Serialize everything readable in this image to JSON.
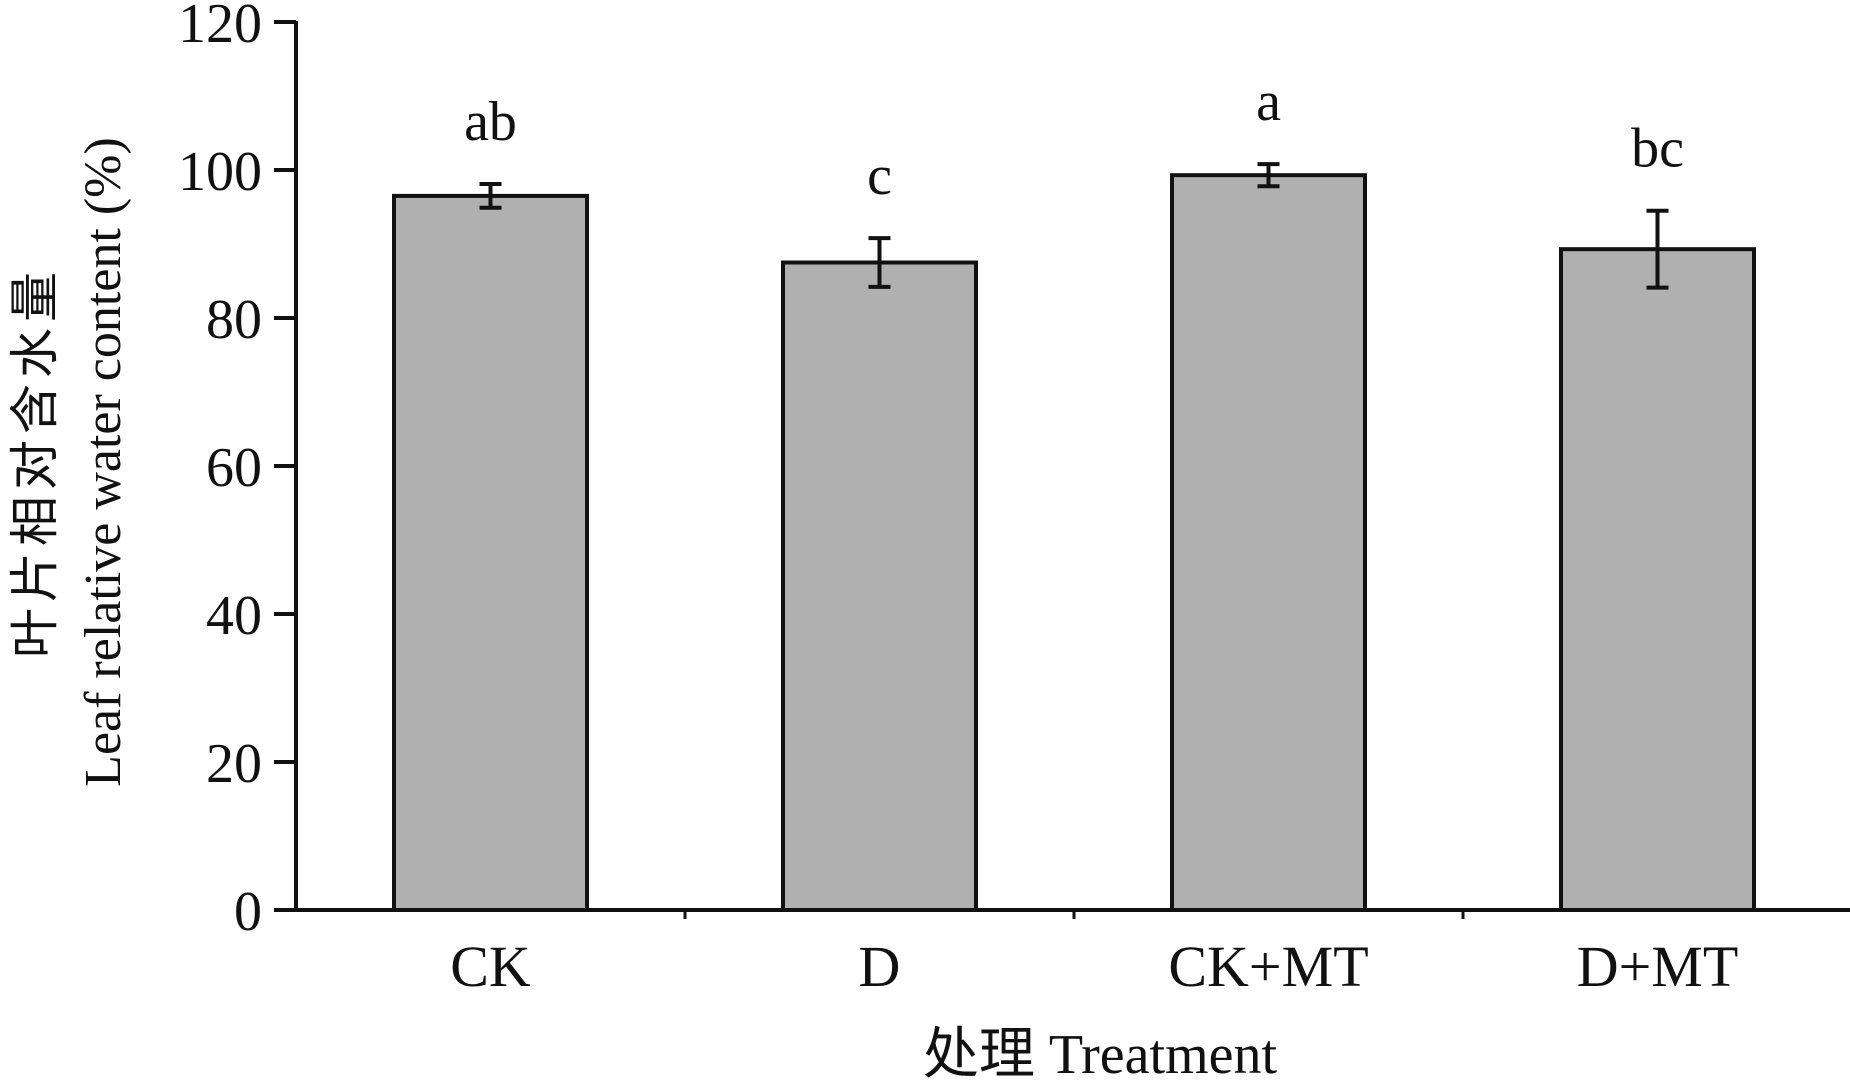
{
  "chart_data": {
    "type": "bar",
    "title": "",
    "xlabel": "处理 Treatment",
    "ylabel_cn": "叶片相对含水量",
    "ylabel_en": "Leaf relative water content (%)",
    "categories": [
      "CK",
      "D",
      "CK+MT",
      "D+MT"
    ],
    "values": [
      96.5,
      87.5,
      99.3,
      89.3
    ],
    "errors": [
      1.6,
      3.3,
      1.5,
      5.2
    ],
    "significance": [
      "ab",
      "c",
      "a",
      "bc"
    ],
    "ylim": [
      0,
      120
    ],
    "yticks": [
      0,
      20,
      40,
      60,
      80,
      100,
      120
    ],
    "ytick_labels": [
      "0",
      "20",
      "40",
      "60",
      "80",
      "100",
      "120"
    ],
    "grid": false,
    "bar_color": "#b0b0b0",
    "edge_color": "#111111"
  }
}
